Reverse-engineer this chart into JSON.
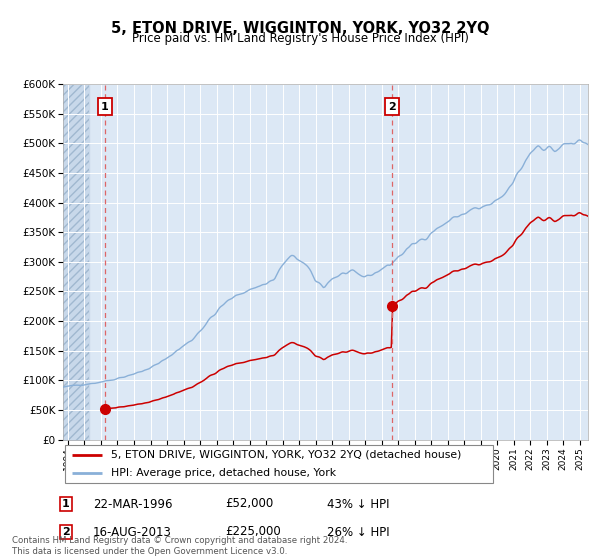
{
  "title": "5, ETON DRIVE, WIGGINTON, YORK, YO32 2YQ",
  "subtitle": "Price paid vs. HM Land Registry's House Price Index (HPI)",
  "legend_line1": "5, ETON DRIVE, WIGGINTON, YORK, YO32 2YQ (detached house)",
  "legend_line2": "HPI: Average price, detached house, York",
  "annotation1_label": "1",
  "annotation1_date": "22-MAR-1996",
  "annotation1_price": "£52,000",
  "annotation1_hpi": "43% ↓ HPI",
  "annotation1_year": 1996.22,
  "annotation1_value": 52000,
  "annotation2_label": "2",
  "annotation2_date": "16-AUG-2013",
  "annotation2_price": "£225,000",
  "annotation2_hpi": "26% ↓ HPI",
  "annotation2_year": 2013.63,
  "annotation2_value": 225000,
  "hpi_color": "#8ab0d8",
  "price_color": "#cc0000",
  "annotation_box_color": "#cc0000",
  "vline_color": "#dd6666",
  "background_plot": "#dce8f5",
  "background_hatch_color": "#c8d8ea",
  "ylim": [
    0,
    600000
  ],
  "xlim_start": 1993.7,
  "xlim_end": 2025.5,
  "footer": "Contains HM Land Registry data © Crown copyright and database right 2024.\nThis data is licensed under the Open Government Licence v3.0."
}
